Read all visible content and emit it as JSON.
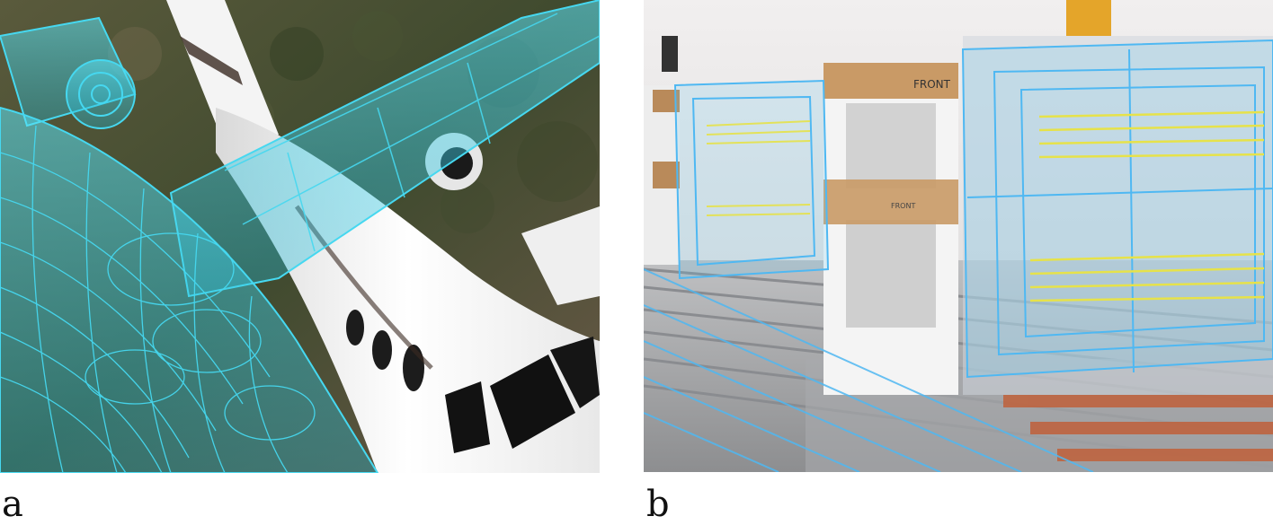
{
  "figure": {
    "panels": [
      {
        "label": "a",
        "subject": "aircraft-digital-twin",
        "overlay_color": "#46d8f0"
      },
      {
        "label": "b",
        "subject": "production-line-digital-twin",
        "overlay_color": "#4fb8f2",
        "box_text": "FRONT",
        "box_strap_text": "FRONT"
      }
    ]
  }
}
